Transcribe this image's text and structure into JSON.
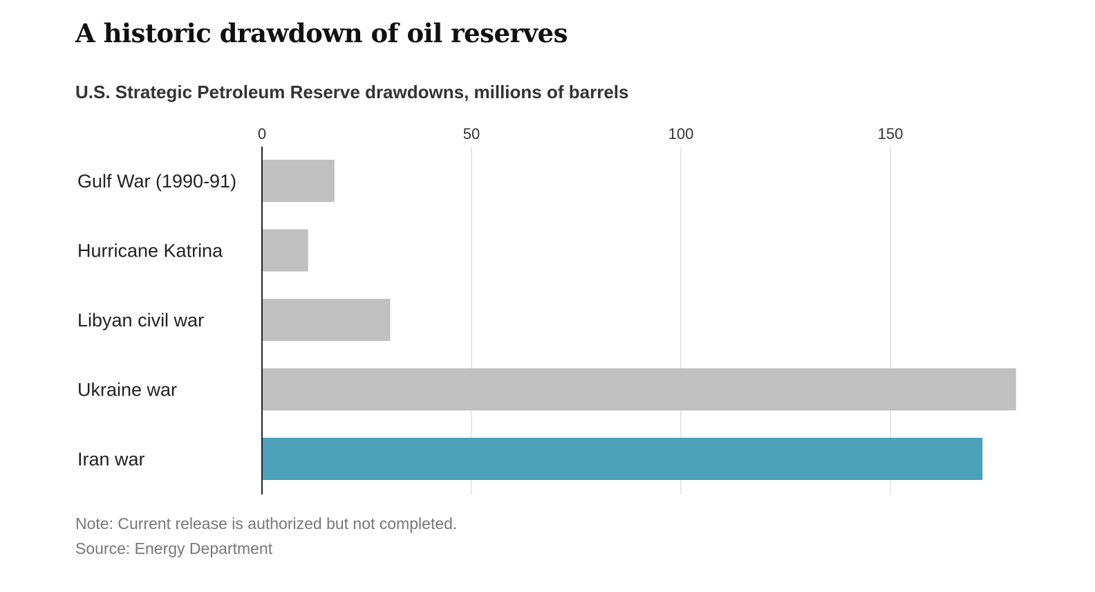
{
  "title": "A historic drawdown of oil reserves",
  "chart_data": {
    "type": "bar",
    "orientation": "horizontal",
    "title": "A historic drawdown of oil reserves",
    "subtitle": "U.S. Strategic Petroleum Reserve drawdowns, millions of barrels",
    "categories": [
      "Gulf War (1990-91)",
      "Hurricane Katrina",
      "Libyan civil war",
      "Ukraine war",
      "Iran war"
    ],
    "values": [
      17.3,
      11,
      30.6,
      180,
      172
    ],
    "colors": [
      "#c0c0c0",
      "#c0c0c0",
      "#c0c0c0",
      "#c0c0c0",
      "#4aa1b9"
    ],
    "xticks": [
      0,
      50,
      100,
      150
    ],
    "xlim": [
      0,
      180
    ],
    "grid": true,
    "xlabel": "",
    "ylabel": ""
  },
  "footer": {
    "note": "Note: Current release is authorized but not completed.",
    "source": "Source: Energy Department"
  }
}
